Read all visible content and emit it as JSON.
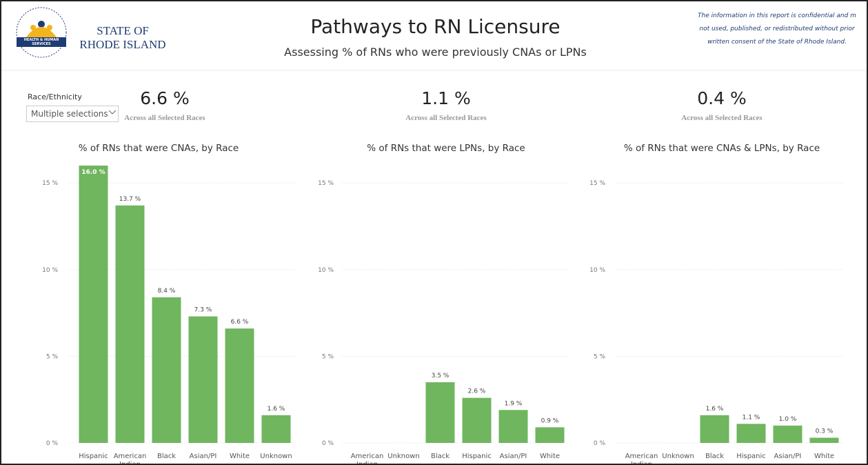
{
  "header": {
    "state_line1": "STATE OF",
    "state_line2": "RHODE ISLAND",
    "logo_text": "HEALTH & HUMAN SERVICES",
    "title": "Pathways to RN Licensure",
    "subtitle": "Assessing % of RNs who were previously CNAs or LPNs",
    "disclaimer": [
      "The information in this report is confidential and m",
      "not used, published, or redistributed without prior",
      "written consent of the State of Rhode Island."
    ]
  },
  "slicer": {
    "label": "Race/Ethnicity",
    "value": "Multiple selections"
  },
  "kpis": [
    {
      "value": "6.6 %",
      "caption": "Across all Selected Races"
    },
    {
      "value": "1.1 %",
      "caption": "Across all Selected Races"
    },
    {
      "value": "0.4 %",
      "caption": "Across all Selected Races"
    }
  ],
  "chart_data": [
    {
      "type": "bar",
      "title": "% of RNs that were CNAs, by Race",
      "categories": [
        "Hispanic",
        "American Indian",
        "Black",
        "Asian/PI",
        "White",
        "Unknown"
      ],
      "values": [
        16.0,
        13.7,
        8.4,
        7.3,
        6.6,
        1.6
      ],
      "value_labels": [
        "16.0 %",
        "13.7 %",
        "8.4 %",
        "7.3 %",
        "6.6 %",
        "1.6 %"
      ],
      "color": "#6fb65f",
      "ylim": [
        0,
        16
      ],
      "yticks": [
        {
          "value": 0,
          "label": "0 %"
        },
        {
          "value": 5,
          "label": "5 %"
        },
        {
          "value": 10,
          "label": "10 %"
        },
        {
          "value": 15,
          "label": "15 %"
        }
      ],
      "grid": true
    },
    {
      "type": "bar",
      "title": "% of RNs that were LPNs, by Race",
      "categories": [
        "American Indian",
        "Unknown",
        "Black",
        "Hispanic",
        "Asian/PI",
        "White"
      ],
      "values": [
        null,
        null,
        3.5,
        2.6,
        1.9,
        0.9
      ],
      "value_labels": [
        null,
        null,
        "3.5 %",
        "2.6 %",
        "1.9 %",
        "0.9 %"
      ],
      "color": "#6fb65f",
      "ylim": [
        0,
        16
      ],
      "yticks": [
        {
          "value": 0,
          "label": "0 %"
        },
        {
          "value": 5,
          "label": "5 %"
        },
        {
          "value": 10,
          "label": "10 %"
        },
        {
          "value": 15,
          "label": "15 %"
        }
      ],
      "grid": true
    },
    {
      "type": "bar",
      "title": "% of RNs that were CNAs & LPNs, by Race",
      "categories": [
        "American Indian",
        "Unknown",
        "Black",
        "Hispanic",
        "Asian/PI",
        "White"
      ],
      "values": [
        null,
        null,
        1.6,
        1.1,
        1.0,
        0.3
      ],
      "value_labels": [
        null,
        null,
        "1.6 %",
        "1.1 %",
        "1.0 %",
        "0.3 %"
      ],
      "color": "#6fb65f",
      "ylim": [
        0,
        16
      ],
      "yticks": [
        {
          "value": 0,
          "label": "0 %"
        },
        {
          "value": 5,
          "label": "5 %"
        },
        {
          "value": 10,
          "label": "10 %"
        },
        {
          "value": 15,
          "label": "15 %"
        }
      ],
      "grid": true
    }
  ]
}
